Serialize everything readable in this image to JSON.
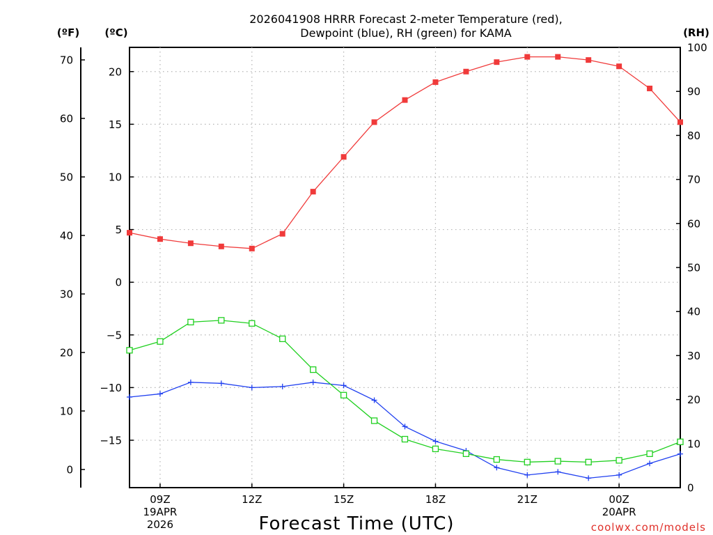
{
  "chart_data": {
    "type": "line",
    "title": [
      "2026041908 HRRR Forecast 2-meter Temperature (red),",
      "Dewpoint (blue), RH (green) for KAMA"
    ],
    "xlabel": "Forecast Time (UTC)",
    "credit": "coolwx.com/models",
    "unit_labels": {
      "fahrenheit": "(ºF)",
      "celsius": "(ºC)",
      "rh": "(RH)"
    },
    "x_hours": [
      8,
      9,
      10,
      11,
      12,
      13,
      14,
      15,
      16,
      17,
      18,
      19,
      20,
      21,
      22,
      23,
      24,
      25,
      26
    ],
    "x_range": [
      8,
      26
    ],
    "x_ticks": [
      {
        "hour": 9,
        "lines": [
          "09Z",
          "19APR",
          "2026"
        ]
      },
      {
        "hour": 12,
        "lines": [
          "12Z"
        ]
      },
      {
        "hour": 15,
        "lines": [
          "15Z"
        ]
      },
      {
        "hour": 18,
        "lines": [
          "18Z"
        ]
      },
      {
        "hour": 21,
        "lines": [
          "21Z"
        ]
      },
      {
        "hour": 24,
        "lines": [
          "00Z",
          "20APR"
        ]
      }
    ],
    "celsius_axis": {
      "range": [
        -19.5,
        22.3
      ],
      "ticks": [
        20,
        15,
        10,
        5,
        0,
        -5,
        -10,
        -15
      ],
      "tick_labels": [
        "20",
        "15",
        "10",
        "5",
        "0",
        "−5",
        "−10",
        "−15"
      ]
    },
    "fahrenheit_axis": {
      "range": [
        -3.1,
        72.14
      ],
      "ticks": [
        70,
        60,
        50,
        40,
        30,
        20,
        10,
        0
      ],
      "tick_labels": [
        "70",
        "60",
        "50",
        "40",
        "30",
        "20",
        "10",
        "0"
      ]
    },
    "rh_axis": {
      "range": [
        0,
        100
      ],
      "ticks": [
        100,
        90,
        80,
        70,
        60,
        50,
        40,
        30,
        20,
        10,
        0
      ],
      "tick_labels": [
        "100",
        "90",
        "80",
        "70",
        "60",
        "50",
        "40",
        "30",
        "20",
        "10",
        "0"
      ]
    },
    "series": [
      {
        "name": "Temperature",
        "color": "#f03a3a",
        "axis": "celsius",
        "marker": "filled-square",
        "values": [
          4.7,
          4.1,
          3.7,
          3.4,
          3.2,
          4.6,
          8.6,
          11.9,
          15.2,
          17.3,
          19.0,
          20.0,
          20.9,
          21.4,
          21.4,
          21.1,
          20.5,
          18.4,
          15.2
        ]
      },
      {
        "name": "Dewpoint",
        "color": "#2040f0",
        "axis": "celsius",
        "marker": "plus",
        "values": [
          -10.9,
          -10.6,
          -9.5,
          -9.6,
          -10.0,
          -9.9,
          -9.5,
          -9.8,
          -11.2,
          -13.7,
          -15.1,
          -16.0,
          -17.6,
          -18.3,
          -18.0,
          -18.6,
          -18.3,
          -17.2,
          -16.3
        ]
      },
      {
        "name": "RH",
        "color": "#20d020",
        "axis": "rh",
        "marker": "open-square",
        "values": [
          31.2,
          33.2,
          37.6,
          38.0,
          37.3,
          33.8,
          26.8,
          21.0,
          15.2,
          11.0,
          8.8,
          7.7,
          6.4,
          5.8,
          6.0,
          5.8,
          6.2,
          7.7,
          10.4
        ]
      }
    ]
  }
}
